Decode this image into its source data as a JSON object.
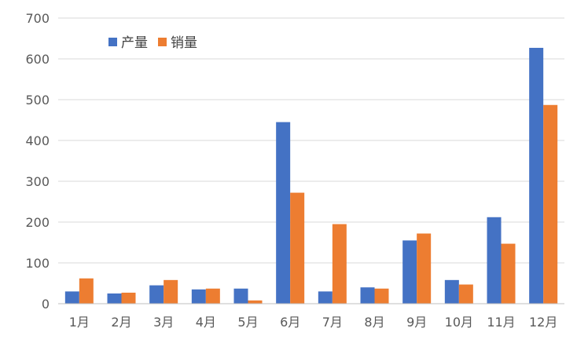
{
  "chart_data": {
    "type": "bar",
    "title": "",
    "xlabel": "",
    "ylabel": "",
    "categories": [
      "1月",
      "2月",
      "3月",
      "4月",
      "5月",
      "6月",
      "7月",
      "8月",
      "9月",
      "10月",
      "11月",
      "12月"
    ],
    "series": [
      {
        "name": "产量",
        "color": "#4472C4",
        "values": [
          30,
          25,
          45,
          35,
          37,
          445,
          30,
          40,
          155,
          58,
          212,
          627
        ]
      },
      {
        "name": "销量",
        "color": "#ED7D31",
        "values": [
          62,
          27,
          58,
          37,
          8,
          272,
          195,
          37,
          172,
          47,
          147,
          487
        ]
      }
    ],
    "ylim": [
      0,
      700
    ],
    "yticks": [
      0,
      100,
      200,
      300,
      400,
      500,
      600,
      700
    ],
    "grid": true,
    "legend_position": "top-left"
  }
}
